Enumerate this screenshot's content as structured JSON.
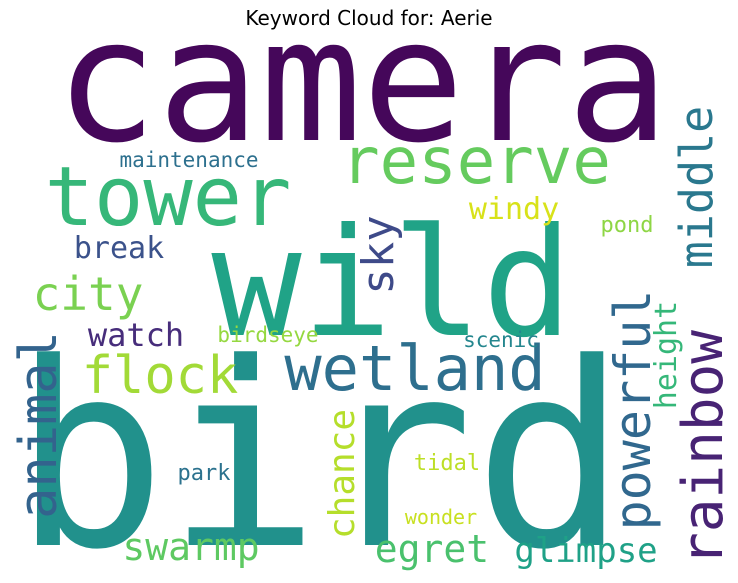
{
  "title": "Keyword Cloud for: Aerie",
  "chart_data": {
    "type": "wordcloud",
    "title": "Keyword Cloud for: Aerie",
    "words": [
      {
        "text": "camera",
        "weight": 1.0,
        "color": "#45075a"
      },
      {
        "text": "wild",
        "weight": 0.95,
        "color": "#20a387"
      },
      {
        "text": "bird",
        "weight": 0.95,
        "color": "#21918c"
      },
      {
        "text": "tower",
        "weight": 0.55,
        "color": "#36b779"
      },
      {
        "text": "reserve",
        "weight": 0.45,
        "color": "#65cb5e"
      },
      {
        "text": "wetland",
        "weight": 0.45,
        "color": "#2e6f8e"
      },
      {
        "text": "rainbow",
        "weight": 0.4,
        "color": "#482374"
      },
      {
        "text": "powerful",
        "weight": 0.38,
        "color": "#31688e"
      },
      {
        "text": "flock",
        "weight": 0.35,
        "color": "#a2da37"
      },
      {
        "text": "animal",
        "weight": 0.35,
        "color": "#33638d"
      },
      {
        "text": "city",
        "weight": 0.33,
        "color": "#7ad151"
      },
      {
        "text": "middle",
        "weight": 0.33,
        "color": "#2a788e"
      },
      {
        "text": "sky",
        "weight": 0.3,
        "color": "#3e4a89"
      },
      {
        "text": "swarmp",
        "weight": 0.27,
        "color": "#5ec962"
      },
      {
        "text": "egret",
        "weight": 0.27,
        "color": "#4ac16d"
      },
      {
        "text": "chance",
        "weight": 0.26,
        "color": "#b5de2b"
      },
      {
        "text": "glimpse",
        "weight": 0.25,
        "color": "#1fa187"
      },
      {
        "text": "watch",
        "weight": 0.24,
        "color": "#472d7b"
      },
      {
        "text": "break",
        "weight": 0.22,
        "color": "#3b528b"
      },
      {
        "text": "windy",
        "weight": 0.22,
        "color": "#d8e219"
      },
      {
        "text": "height",
        "weight": 0.21,
        "color": "#35b779"
      },
      {
        "text": "maintenance",
        "weight": 0.16,
        "color": "#2d708e"
      },
      {
        "text": "birdseye",
        "weight": 0.16,
        "color": "#95d840"
      },
      {
        "text": "scenic",
        "weight": 0.15,
        "color": "#24868e"
      },
      {
        "text": "pond",
        "weight": 0.16,
        "color": "#8ed645"
      },
      {
        "text": "park",
        "weight": 0.16,
        "color": "#2c728e"
      },
      {
        "text": "tidal",
        "weight": 0.15,
        "color": "#bddf26"
      },
      {
        "text": "wonder",
        "weight": 0.15,
        "color": "#c8e020"
      }
    ]
  }
}
